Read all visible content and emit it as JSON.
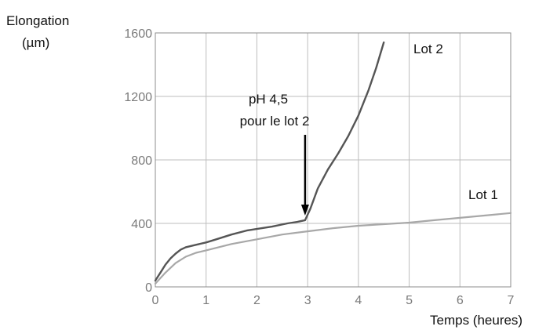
{
  "chart_data": {
    "type": "line",
    "ylabel_lines": [
      "Elongation",
      "(µm)"
    ],
    "xlabel": "Temps (heures)",
    "xlim": [
      0,
      7
    ],
    "ylim": [
      0,
      1600
    ],
    "x_ticks": [
      0,
      1,
      2,
      3,
      4,
      5,
      6,
      7
    ],
    "y_ticks": [
      0,
      400,
      800,
      1200,
      1600
    ],
    "grid": true,
    "annotation": {
      "lines": [
        "pH 4,5",
        "pour le lot 2"
      ],
      "arrow_to": [
        2.95,
        420
      ]
    },
    "series": [
      {
        "name": "Lot 2",
        "color": "#555555",
        "x": [
          0,
          0.1,
          0.2,
          0.3,
          0.4,
          0.5,
          0.6,
          0.8,
          1.0,
          1.2,
          1.5,
          1.8,
          2.0,
          2.3,
          2.6,
          2.8,
          2.95,
          3.05,
          3.2,
          3.4,
          3.6,
          3.8,
          4.0,
          4.2,
          4.35,
          4.5
        ],
        "y": [
          40,
          90,
          140,
          180,
          210,
          235,
          250,
          265,
          280,
          300,
          330,
          355,
          365,
          380,
          400,
          410,
          420,
          490,
          620,
          740,
          840,
          950,
          1080,
          1240,
          1380,
          1540
        ]
      },
      {
        "name": "Lot 1",
        "color": "#a8a8a8",
        "x": [
          0,
          0.2,
          0.4,
          0.6,
          0.8,
          1.0,
          1.5,
          2.0,
          2.5,
          3.0,
          3.5,
          4.0,
          4.5,
          5.0,
          5.5,
          6.0,
          6.5,
          7.0
        ],
        "y": [
          20,
          90,
          150,
          190,
          215,
          230,
          270,
          300,
          330,
          350,
          370,
          385,
          395,
          405,
          420,
          435,
          450,
          465
        ]
      }
    ]
  }
}
